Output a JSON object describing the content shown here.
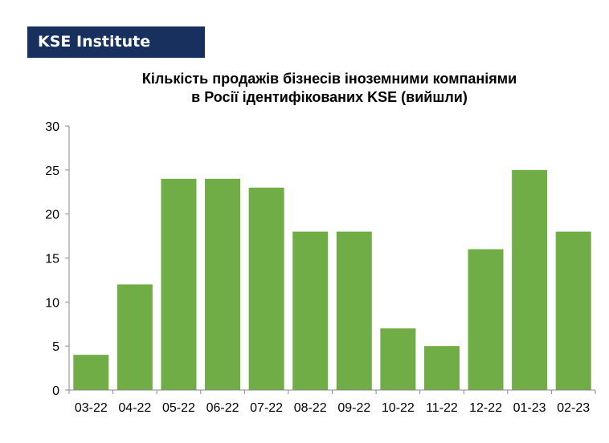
{
  "brand": {
    "label": "KSE Institute"
  },
  "colors": {
    "bar": "#70ad47",
    "brand_bg": "#17305e",
    "axis": "#8a8a8a"
  },
  "chart_data": {
    "type": "bar",
    "title_line1": "Кількість продажів бізнесів іноземними компаніями",
    "title_line2": "в Росії ідентифікованих KSE (вийшли)",
    "xlabel": "",
    "ylabel": "",
    "categories": [
      "03-22",
      "04-22",
      "05-22",
      "06-22",
      "07-22",
      "08-22",
      "09-22",
      "10-22",
      "11-22",
      "12-22",
      "01-23",
      "02-23"
    ],
    "values": [
      4,
      12,
      24,
      24,
      23,
      18,
      18,
      7,
      5,
      16,
      25,
      18
    ],
    "ylim": [
      0,
      30
    ],
    "yticks": [
      0,
      5,
      10,
      15,
      20,
      25,
      30
    ],
    "grid": false,
    "legend": "none"
  }
}
